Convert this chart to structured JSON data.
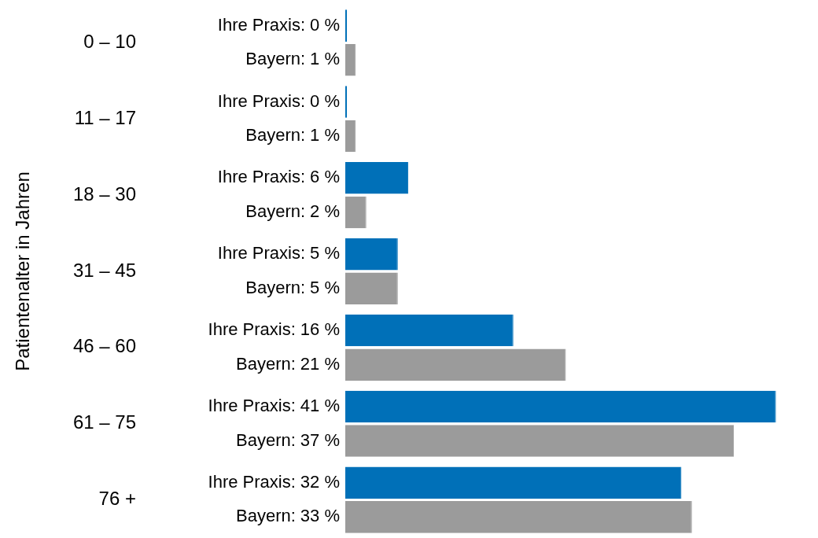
{
  "chart_data": {
    "type": "bar",
    "orientation": "horizontal",
    "ylabel": "Patientenalter in Jahren",
    "categories": [
      "0 – 10",
      "11 – 17",
      "18 – 30",
      "31 – 45",
      "46 – 60",
      "61 – 75",
      "76 +"
    ],
    "series": [
      {
        "name": "Ihre Praxis:",
        "color": "#0070b8",
        "values": [
          0,
          0,
          6,
          5,
          16,
          41,
          32
        ],
        "value_labels": [
          "0 %",
          "0 %",
          "6 %",
          "5 %",
          "16 %",
          "41 %",
          "32 %"
        ]
      },
      {
        "name": "Bayern:",
        "color": "#9b9b9b",
        "values": [
          1,
          1,
          2,
          5,
          21,
          37,
          33
        ],
        "value_labels": [
          "1 %",
          "1 %",
          "2 %",
          "5 %",
          "21 %",
          "37 %",
          "33 %"
        ]
      }
    ],
    "legend": false
  }
}
